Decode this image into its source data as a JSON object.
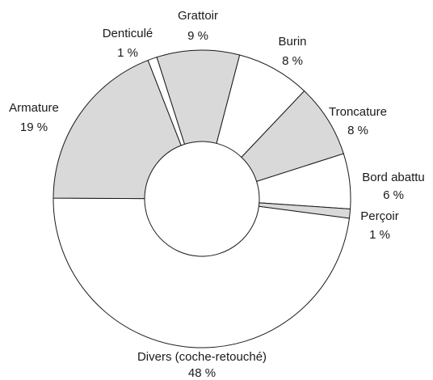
{
  "chart_data": {
    "type": "donut",
    "categories": [
      "Grattoir",
      "Burin",
      "Troncature",
      "Bord abattu",
      "Perçoir",
      "Divers (coche-retouché)",
      "Armature",
      "Denticulé"
    ],
    "values": [
      9,
      8,
      8,
      6,
      1,
      48,
      19,
      1
    ],
    "value_labels": [
      "9 %",
      "8 %",
      "8 %",
      "6 %",
      "1 %",
      "48 %",
      "19 %",
      "1 %"
    ],
    "colors": [
      "#d9d9d9",
      "#ffffff",
      "#d9d9d9",
      "#ffffff",
      "#d9d9d9",
      "#ffffff",
      "#d9d9d9",
      "#ffffff"
    ]
  }
}
